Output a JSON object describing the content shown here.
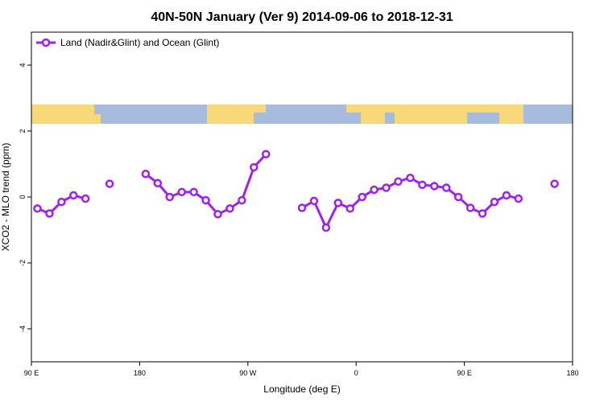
{
  "chart_data": {
    "type": "line",
    "title": "40N-50N January (Ver 9)   2014-09-06 to 2018-12-31",
    "x_label": "Longitude (deg E)",
    "y_label": "XCO2 - MLO trend (ppm)",
    "x": [
      95,
      105,
      115,
      125,
      135,
      145,
      155,
      165,
      185,
      195,
      205,
      215,
      225,
      235,
      245,
      255,
      265,
      275,
      285,
      305,
      315,
      325,
      335,
      345,
      355,
      365,
      375,
      385,
      395,
      405,
      415,
      425,
      435,
      445,
      455,
      465,
      475,
      485,
      495,
      505,
      525
    ],
    "series": [
      {
        "name": "Land (Nadir&Glint) and Ocean (Glint)",
        "color": "#a020f0",
        "values": [
          -0.35,
          -0.5,
          -0.15,
          0.05,
          -0.05,
          null,
          0.4,
          null,
          0.7,
          0.42,
          0,
          0.15,
          0.15,
          -0.1,
          -0.52,
          -0.35,
          -0.1,
          0.9,
          1.3,
          null,
          -0.33,
          -0.12,
          -0.93,
          -0.18,
          -0.35,
          0,
          0.22,
          0.28,
          0.47,
          0.58,
          0.37,
          0.33,
          0.28,
          0,
          -0.33,
          -0.5,
          -0.15,
          0.05,
          -0.05,
          null,
          0.4
        ]
      }
    ],
    "xlim": [
      90,
      540
    ],
    "xticks": [
      {
        "value": 90,
        "label": "90 E"
      },
      {
        "value": 180,
        "label": "180"
      },
      {
        "value": 270,
        "label": "90 W"
      },
      {
        "value": 360,
        "label": "0"
      },
      {
        "value": 450,
        "label": "90 E"
      },
      {
        "value": 540,
        "label": "180"
      }
    ],
    "ylim": [
      -5,
      5
    ],
    "yticks": [
      -4,
      -2,
      0,
      2,
      4
    ],
    "legend": "top-left"
  }
}
